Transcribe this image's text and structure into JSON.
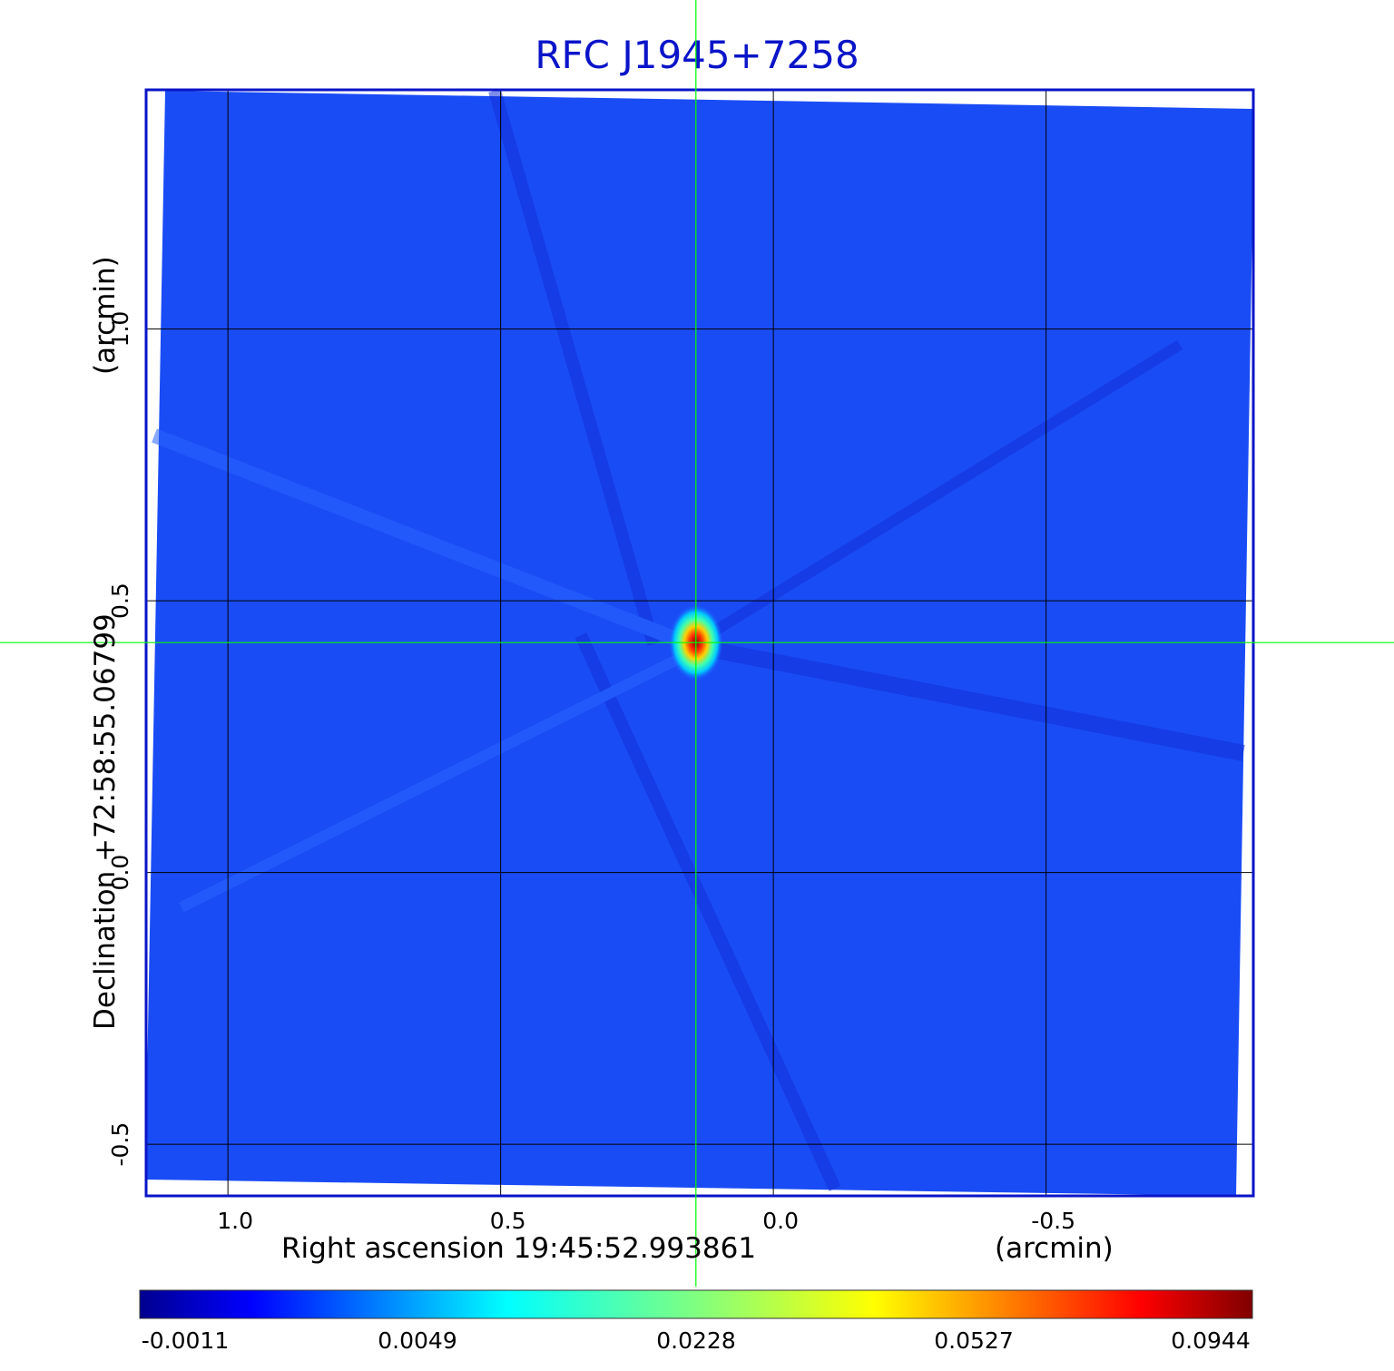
{
  "chart_data": {
    "type": "heatmap",
    "title": "RFC J1945+7258",
    "xlabel": "Right ascension  19:45:52.993861",
    "xunit": "(arcmin)",
    "ylabel": "Declination  +72:58:55.06799",
    "yunit": "(arcmin)",
    "x_ticks": [
      1.0,
      0.5,
      0.0,
      -0.5
    ],
    "x_tick_labels": [
      "1.0",
      "0.5",
      "0.0",
      "-0.5"
    ],
    "y_ticks": [
      1.0,
      0.5,
      0.0,
      -0.5
    ],
    "y_tick_labels": [
      "1.0",
      "0.5",
      "0.0",
      "-0.5"
    ],
    "xlim": [
      1.15,
      -0.88
    ],
    "ylim": [
      -0.595,
      1.44
    ],
    "grid": true,
    "crosshair": {
      "x": 0.142,
      "y": 0.423,
      "color": "#00ff00"
    },
    "peak": {
      "x": 0.142,
      "y": 0.423,
      "value": 0.0944
    },
    "background_value": -0.0002,
    "colorbar": {
      "tick_labels": [
        "-0.0011",
        "0.0049",
        "0.0228",
        "0.0527",
        "0.0944"
      ],
      "range": [
        -0.0011,
        0.0944
      ],
      "colormap": "jet"
    },
    "colors": {
      "title": "#0a14c8",
      "frame": "#0a14c8",
      "grid": "#000000",
      "crosshair": "#00ff00"
    }
  }
}
